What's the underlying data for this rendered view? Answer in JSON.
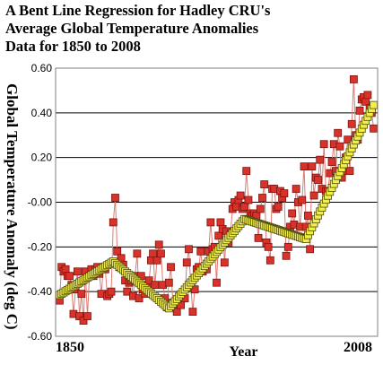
{
  "chart_data": {
    "type": "scatter",
    "title_lines": [
      "A Bent Line Regression for Hadley CRU's",
      "Average Global Temperature Anomalies",
      "Data for 1850 to 2008"
    ],
    "xlabel": "Year",
    "ylabel": "Global Temperature Anomaly (deg C)",
    "xlim": [
      1848,
      2010
    ],
    "ylim": [
      -0.6,
      0.6
    ],
    "x_tick_labels": [
      {
        "value": 1850,
        "label": "1850"
      },
      {
        "value": 2008,
        "label": "2008"
      }
    ],
    "y_ticks": [
      {
        "value": 0.6,
        "label": "0.60"
      },
      {
        "value": 0.4,
        "label": "0.40"
      },
      {
        "value": 0.2,
        "label": "0.20"
      },
      {
        "value": 0.0,
        "label": "-0.00"
      },
      {
        "value": -0.2,
        "label": "-0.20"
      },
      {
        "value": -0.4,
        "label": "-0.40"
      },
      {
        "value": -0.6,
        "label": "-0.60"
      }
    ],
    "grid": true,
    "colors": {
      "observed_fill": "#d9322b",
      "observed_edge": "#7a1410",
      "observed_line": "#e07a70",
      "fit_fill": "#f2ee48",
      "fit_edge": "#4d4a10",
      "grid": "#000000",
      "frame": "#808080"
    },
    "series": [
      {
        "role": "observed",
        "x": [
          1850,
          1851,
          1852,
          1853,
          1854,
          1855,
          1856,
          1857,
          1858,
          1859,
          1860,
          1861,
          1862,
          1863,
          1864,
          1865,
          1866,
          1867,
          1868,
          1869,
          1870,
          1871,
          1872,
          1873,
          1874,
          1875,
          1876,
          1877,
          1878,
          1879,
          1880,
          1881,
          1882,
          1883,
          1884,
          1885,
          1886,
          1887,
          1888,
          1889,
          1890,
          1891,
          1892,
          1893,
          1894,
          1895,
          1896,
          1897,
          1898,
          1899,
          1900,
          1901,
          1902,
          1903,
          1904,
          1905,
          1906,
          1907,
          1908,
          1909,
          1910,
          1911,
          1912,
          1913,
          1914,
          1915,
          1916,
          1917,
          1918,
          1919,
          1920,
          1921,
          1922,
          1923,
          1924,
          1925,
          1926,
          1927,
          1928,
          1929,
          1930,
          1931,
          1932,
          1933,
          1934,
          1935,
          1936,
          1937,
          1938,
          1939,
          1940,
          1941,
          1942,
          1943,
          1944,
          1945,
          1946,
          1947,
          1948,
          1949,
          1950,
          1951,
          1952,
          1953,
          1954,
          1955,
          1956,
          1957,
          1958,
          1959,
          1960,
          1961,
          1962,
          1963,
          1964,
          1965,
          1966,
          1967,
          1968,
          1969,
          1970,
          1971,
          1972,
          1973,
          1974,
          1975,
          1976,
          1977,
          1978,
          1979,
          1980,
          1981,
          1982,
          1983,
          1984,
          1985,
          1986,
          1987,
          1988,
          1989,
          1990,
          1991,
          1992,
          1993,
          1994,
          1995,
          1996,
          1997,
          1998,
          1999,
          2000,
          2001,
          2002,
          2003,
          2004,
          2005,
          2006,
          2007,
          2008
        ],
        "y": [
          -0.44,
          -0.29,
          -0.31,
          -0.3,
          -0.33,
          -0.33,
          -0.37,
          -0.5,
          -0.39,
          -0.31,
          -0.51,
          -0.41,
          -0.53,
          -0.31,
          -0.51,
          -0.33,
          -0.3,
          -0.33,
          -0.3,
          -0.29,
          -0.32,
          -0.41,
          -0.29,
          -0.3,
          -0.42,
          -0.41,
          -0.4,
          -0.09,
          0.02,
          -0.22,
          -0.29,
          -0.25,
          -0.28,
          -0.35,
          -0.4,
          -0.36,
          -0.35,
          -0.42,
          -0.33,
          -0.23,
          -0.43,
          -0.33,
          -0.39,
          -0.41,
          -0.37,
          -0.35,
          -0.26,
          -0.23,
          -0.37,
          -0.26,
          -0.19,
          -0.23,
          -0.37,
          -0.43,
          -0.47,
          -0.36,
          -0.29,
          -0.45,
          -0.47,
          -0.49,
          -0.44,
          -0.46,
          -0.43,
          -0.43,
          -0.27,
          -0.21,
          -0.37,
          -0.49,
          -0.39,
          -0.3,
          -0.29,
          -0.22,
          -0.31,
          -0.3,
          -0.3,
          -0.22,
          -0.09,
          -0.21,
          -0.2,
          -0.36,
          -0.15,
          -0.09,
          -0.12,
          -0.27,
          -0.13,
          -0.18,
          -0.14,
          -0.03,
          0.0,
          -0.02,
          0.01,
          0.03,
          -0.03,
          -0.02,
          0.14,
          0.01,
          -0.05,
          -0.06,
          -0.05,
          -0.06,
          -0.16,
          -0.03,
          0.02,
          0.08,
          -0.18,
          -0.2,
          -0.26,
          0.06,
          0.06,
          -0.03,
          -0.02,
          0.05,
          0.02,
          0.04,
          -0.24,
          -0.2,
          -0.11,
          -0.05,
          -0.1,
          0.06,
          0.0,
          -0.11,
          0.01,
          0.16,
          -0.11,
          -0.06,
          -0.21,
          0.16,
          0.03,
          0.11,
          0.1,
          0.19,
          0.06,
          0.26,
          0.05,
          0.05,
          0.13,
          0.18,
          0.26,
          0.14,
          0.31,
          0.25,
          0.11,
          0.14,
          0.2,
          0.28,
          0.14,
          0.35,
          0.55,
          0.3,
          0.28,
          0.41,
          0.46,
          0.47,
          0.45,
          0.48,
          0.42,
          0.4,
          0.33
        ]
      },
      {
        "role": "bent-line fit",
        "knots": [
          {
            "x": 1850,
            "y": -0.415
          },
          {
            "x": 1877,
            "y": -0.265
          },
          {
            "x": 1905,
            "y": -0.475
          },
          {
            "x": 1943,
            "y": -0.075
          },
          {
            "x": 1974,
            "y": -0.165
          },
          {
            "x": 2008,
            "y": 0.435
          }
        ],
        "step_years": 1
      }
    ]
  }
}
